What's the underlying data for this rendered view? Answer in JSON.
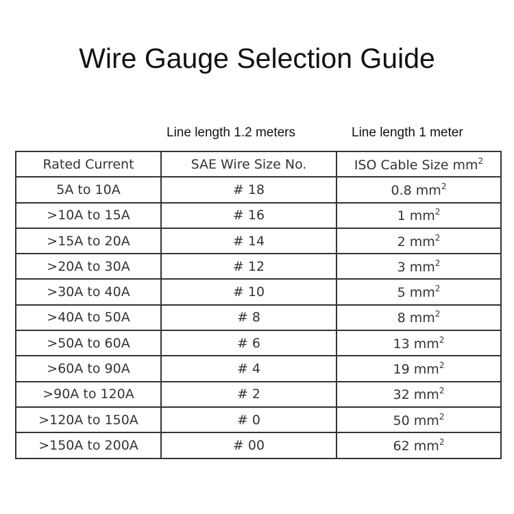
{
  "title": "Wire Gauge Selection Guide",
  "subtitles": {
    "sae": "Line length 1.2 meters",
    "iso": "Line length 1 meter"
  },
  "table": {
    "headers": [
      "Rated Current",
      "SAE Wire Size No.",
      "ISO Cable Size mm"
    ],
    "unit": "mm",
    "superscript": "2",
    "rows": [
      {
        "current": "5A to 10A",
        "sae": "# 18",
        "iso": "0.8"
      },
      {
        "current": ">10A to 15A",
        "sae": "# 16",
        "iso": "1"
      },
      {
        "current": ">15A to 20A",
        "sae": "# 14",
        "iso": "2"
      },
      {
        "current": ">20A to 30A",
        "sae": "# 12",
        "iso": "3"
      },
      {
        "current": ">30A to 40A",
        "sae": "# 10",
        "iso": "5"
      },
      {
        "current": ">40A to 50A",
        "sae": "# 8",
        "iso": "8"
      },
      {
        "current": ">50A to 60A",
        "sae": "# 6",
        "iso": "13"
      },
      {
        "current": ">60A to 90A",
        "sae": "# 4",
        "iso": "19"
      },
      {
        "current": ">90A to 120A",
        "sae": "# 2",
        "iso": "32"
      },
      {
        "current": ">120A to 150A",
        "sae": "# 0",
        "iso": "50"
      },
      {
        "current": ">150A to 200A",
        "sae": "# 00",
        "iso": "62"
      }
    ]
  }
}
